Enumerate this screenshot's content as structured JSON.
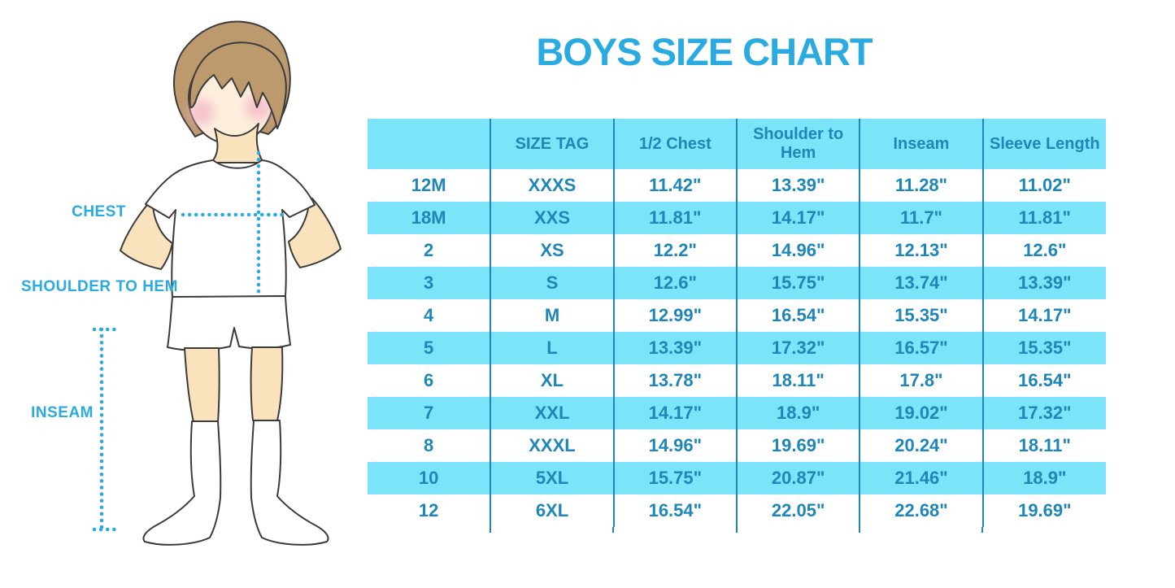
{
  "title": {
    "text": "BOYS SIZE CHART",
    "color": "#29ABE2"
  },
  "figure": {
    "description": "boy-illustration-with-measurement-guides",
    "labels": {
      "chest": "CHEST",
      "shoulder_to_hem": "SHOULDER TO HEM",
      "inseam": "INSEAM"
    },
    "colors": {
      "label_text": "#29ABE2",
      "dotted_guide": "#29ABE2",
      "hair": "#BC9A6E",
      "face_skin": "#FDEEDC",
      "body_skin": "#FAE3BC",
      "blush": "#F2AEC4",
      "garments": "#FFFFFF",
      "outline": "#3B3B3B"
    }
  },
  "chart_data": {
    "type": "table",
    "title": "BOYS SIZE CHART",
    "columns": [
      "",
      "SIZE TAG",
      "1/2 Chest",
      "Shoulder to Hem",
      "Inseam",
      "Sleeve Length"
    ],
    "rows": [
      [
        "12M",
        "XXXS",
        "11.42\"",
        "13.39\"",
        "11.28\"",
        "11.02\""
      ],
      [
        "18M",
        "XXS",
        "11.81\"",
        "14.17\"",
        "11.7\"",
        "11.81\""
      ],
      [
        "2",
        "XS",
        "12.2\"",
        "14.96\"",
        "12.13\"",
        "12.6\""
      ],
      [
        "3",
        "S",
        "12.6\"",
        "15.75\"",
        "13.74\"",
        "13.39\""
      ],
      [
        "4",
        "M",
        "12.99\"",
        "16.54\"",
        "15.35\"",
        "14.17\""
      ],
      [
        "5",
        "L",
        "13.39\"",
        "17.32\"",
        "16.57\"",
        "15.35\""
      ],
      [
        "6",
        "XL",
        "13.78\"",
        "18.11\"",
        "17.8\"",
        "16.54\""
      ],
      [
        "7",
        "XXL",
        "14.17\"",
        "18.9\"",
        "19.02\"",
        "17.32\""
      ],
      [
        "8",
        "XXXL",
        "14.96\"",
        "19.69\"",
        "20.24\"",
        "18.11\""
      ],
      [
        "10",
        "5XL",
        "15.75\"",
        "20.87\"",
        "21.46\"",
        "18.9\""
      ],
      [
        "12",
        "6XL",
        "16.54\"",
        "22.05\"",
        "22.68\"",
        "19.69\""
      ]
    ],
    "style": {
      "header_bg": "#7BE4F9",
      "zebra_row_bg": "#7BE4F9",
      "base_row_bg": "#FFFFFF",
      "text_color": "#1E86B8",
      "grid_line_color": "#1E86B8",
      "zebra_pattern": "header cyan, then rows alternate white/cyan starting with white"
    }
  }
}
